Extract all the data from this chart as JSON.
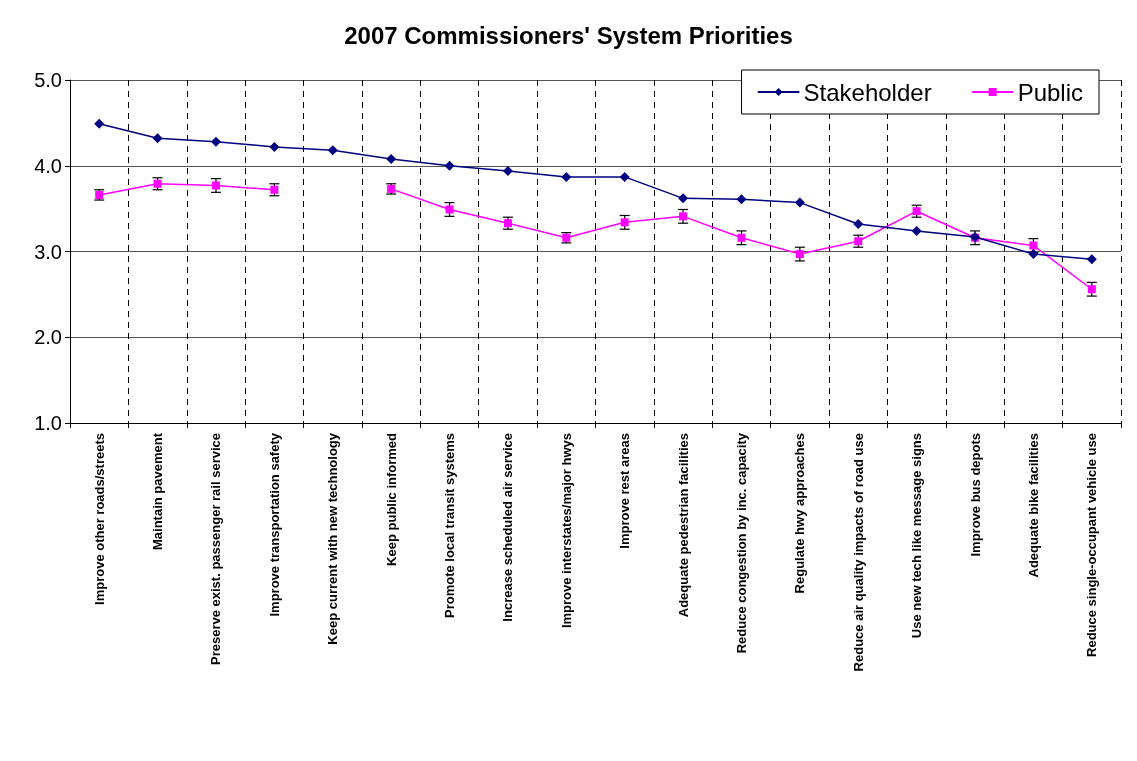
{
  "chart_data": {
    "type": "line",
    "title": "2007 Commissioners' System Priorities",
    "categories": [
      "Improve other roads/streets",
      "Maintain pavement",
      "Preserve exist. passenger rail service",
      "Improve transportation safety",
      "Keep current with new technology",
      "Keep public informed",
      "Promote local transit systems",
      "Increase scheduled air service",
      "Improve interstates/major hwys",
      "Improve rest areas",
      "Adequate pedestrian facilities",
      "Reduce congestion by inc. capacity",
      "Regulate hwy approaches",
      "Reduce air quality impacts of road use",
      "Use new tech like message signs",
      "Improve bus depots",
      "Adequate bike facilities",
      "Reduce single-occupant vehicle use"
    ],
    "series": [
      {
        "name": "Stakeholder",
        "color": "#000080",
        "marker": "diamond",
        "values": [
          4.49,
          4.32,
          4.28,
          4.22,
          4.18,
          4.08,
          4.0,
          3.94,
          3.87,
          3.87,
          3.62,
          3.61,
          3.57,
          3.32,
          3.24,
          3.17,
          2.97,
          2.91
        ]
      },
      {
        "name": "Public",
        "color": "#ff00ff",
        "marker": "square",
        "values": [
          3.66,
          3.79,
          3.77,
          3.72,
          null,
          3.73,
          3.49,
          3.33,
          3.16,
          3.34,
          3.41,
          3.16,
          2.97,
          3.12,
          3.47,
          3.16,
          3.07,
          2.56
        ],
        "errors": [
          0.06,
          0.07,
          0.08,
          0.07,
          null,
          0.06,
          0.08,
          0.07,
          0.06,
          0.08,
          0.08,
          0.08,
          0.08,
          0.07,
          0.07,
          0.08,
          0.08,
          0.08
        ]
      }
    ],
    "ylim": [
      1.0,
      5.0
    ],
    "yticks": [
      {
        "value": 1,
        "label": "1.0"
      },
      {
        "value": 2,
        "label": "2.0"
      },
      {
        "value": 3,
        "label": "3.0"
      },
      {
        "value": 4,
        "label": "4.0"
      },
      {
        "value": 5,
        "label": "5.0"
      }
    ],
    "grid": true,
    "legend": "top right",
    "line_style": "solid"
  }
}
